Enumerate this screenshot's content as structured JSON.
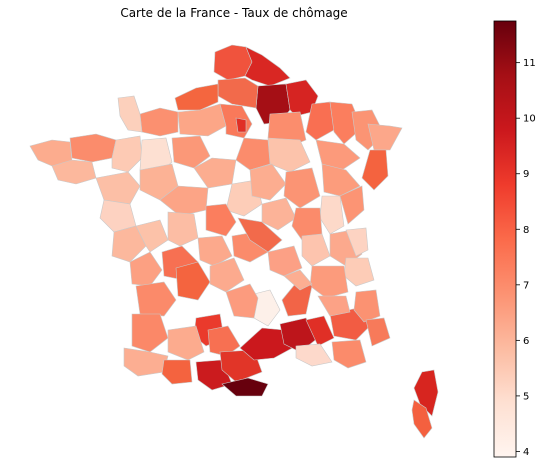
{
  "title": "Carte de la France - Taux de chômage",
  "colorbar": {
    "cmap": "Reds",
    "min": 3.9,
    "max": 11.75,
    "ticks": [
      "4",
      "5",
      "6",
      "7",
      "8",
      "9",
      "10",
      "11"
    ],
    "tick_values": [
      4,
      5,
      6,
      7,
      8,
      9,
      10,
      11
    ]
  },
  "chart_data": {
    "type": "heatmap",
    "title": "Carte de la France - Taux de chômage",
    "colorbar_ticks": [
      4,
      5,
      6,
      7,
      8,
      9,
      10,
      11
    ],
    "value_range": [
      3.9,
      11.75
    ],
    "colormap": "Reds",
    "grid": false
  }
}
